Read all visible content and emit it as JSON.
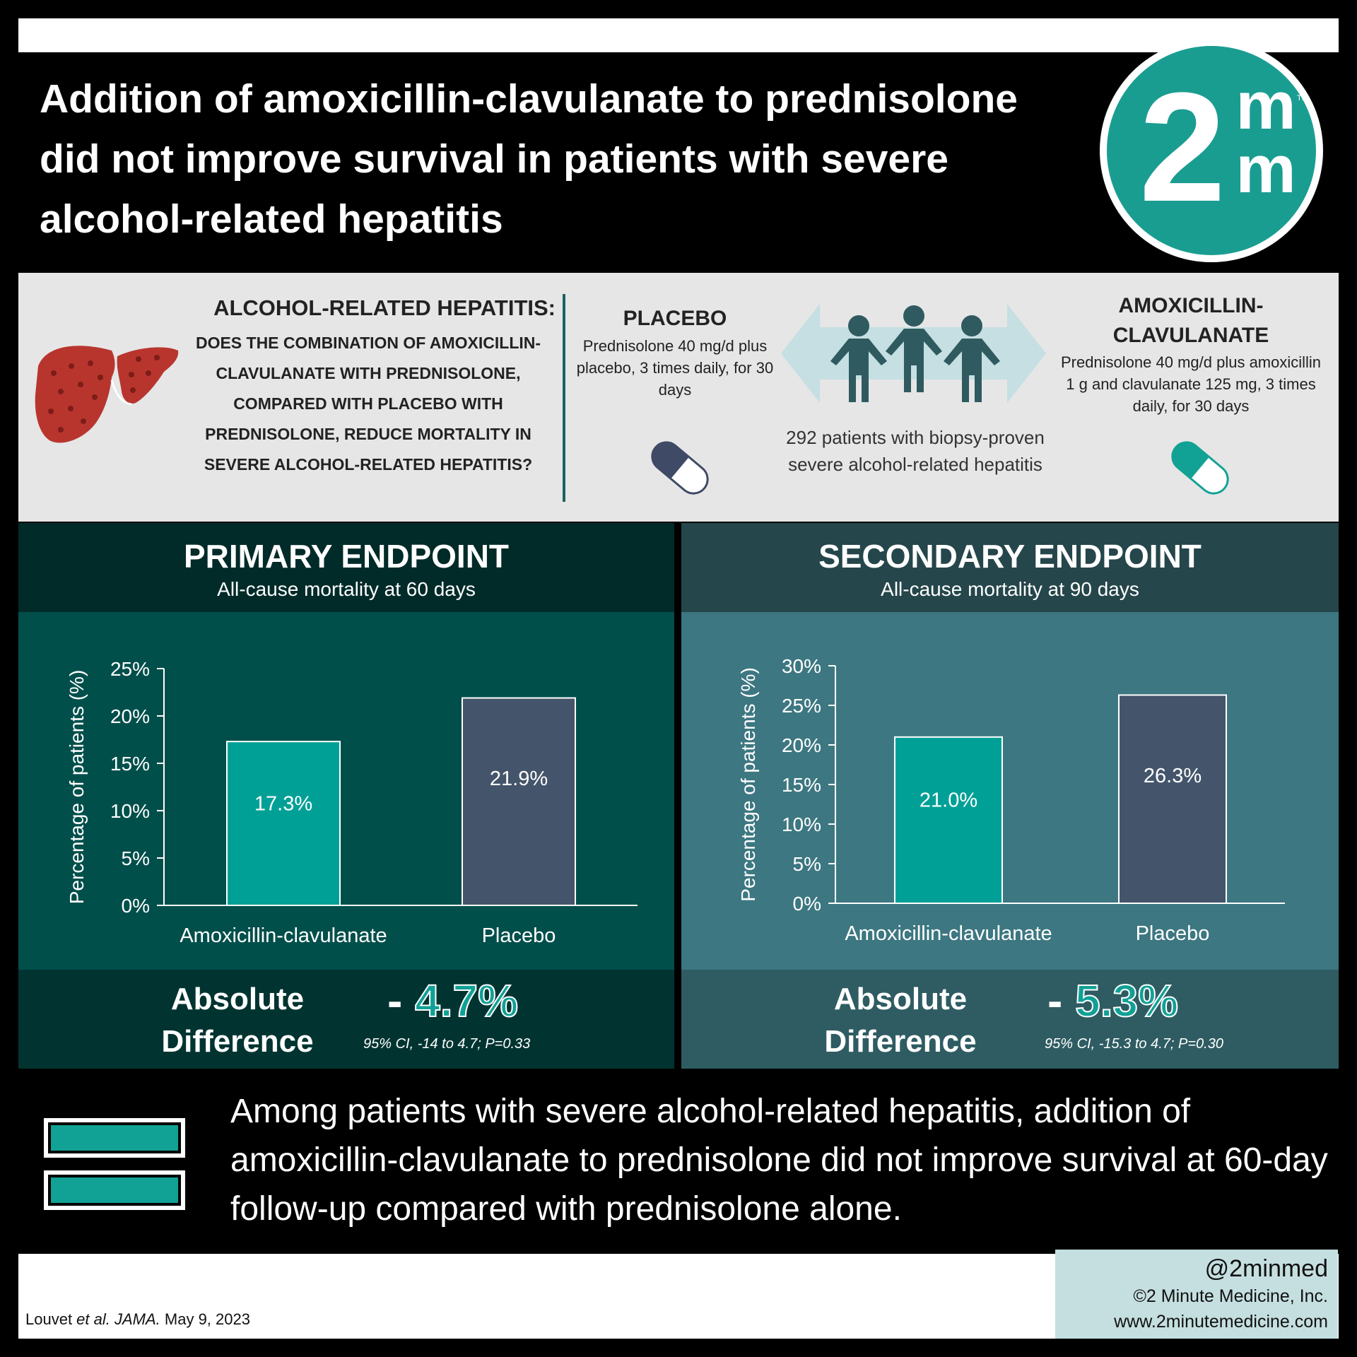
{
  "header": {
    "title": "Addition of amoxicillin-clavulanate to prednisolone did not improve survival in patients with severe alcohol-related hepatitis",
    "logo_main": "2",
    "logo_top": "m",
    "logo_bottom": "m",
    "logo_tm": "TM"
  },
  "study": {
    "question_heading": "ALCOHOL-RELATED HEPATITIS:",
    "question": "Does the combination of amoxicillin-clavulanate with prednisolone, compared with placebo with prednisolone, reduce mortality in severe alcohol-related hepatitis?",
    "placebo_title": "PLACEBO",
    "placebo_desc": "Prednisolone 40 mg/d plus placebo, 3 times daily, for 30 days",
    "amox_title": "AMOXICILLIN-CLAVULANATE",
    "amox_desc": "Prednisolone 40 mg/d plus amoxicillin 1 g and clavulanate 125 mg, 3 times daily, for 30 days",
    "population": "292 patients with biopsy-proven severe alcohol-related hepatitis"
  },
  "primary": {
    "title": "PRIMARY ENDPOINT",
    "subtitle": "All-cause mortality at 60 days",
    "diff_label": "Absolute Difference",
    "diff_sign": "-",
    "diff_value": "4.7%",
    "diff_ci": "95% CI, -14 to 4.7; P=0.33"
  },
  "secondary": {
    "title": "SECONDARY ENDPOINT",
    "subtitle": "All-cause mortality at 90 days",
    "diff_label": "Absolute Difference",
    "diff_sign": "-",
    "diff_value": "5.3%",
    "diff_ci": "95% CI, -15.3 to 4.7; P=0.30"
  },
  "chart_data": [
    {
      "type": "bar",
      "title": "All-cause mortality at 60 days",
      "categories": [
        "Amoxicillin-clavulanate",
        "Placebo"
      ],
      "values": [
        17.3,
        21.9
      ],
      "value_labels": [
        "17.3%",
        "21.9%"
      ],
      "ylabel": "Percentage of patients (%)",
      "ylim": [
        0,
        25
      ],
      "yticks": [
        0,
        5,
        10,
        15,
        20,
        25
      ],
      "ytick_labels": [
        "0%",
        "5%",
        "10%",
        "15%",
        "20%",
        "25%"
      ],
      "colors": [
        "#00a096",
        "#44556b"
      ]
    },
    {
      "type": "bar",
      "title": "All-cause mortality at 90 days",
      "categories": [
        "Amoxicillin-clavulanate",
        "Placebo"
      ],
      "values": [
        21.0,
        26.3
      ],
      "value_labels": [
        "21.0%",
        "26.3%"
      ],
      "ylabel": "Percentage of patients (%)",
      "ylim": [
        0,
        30
      ],
      "yticks": [
        0,
        5,
        10,
        15,
        20,
        25,
        30
      ],
      "ytick_labels": [
        "0%",
        "5%",
        "10%",
        "15%",
        "20%",
        "25%",
        "30%"
      ],
      "colors": [
        "#00a096",
        "#44556b"
      ]
    }
  ],
  "conclusion": {
    "text": "Among patients with severe alcohol-related hepatitis, addition of amoxicillin-clavulanate to prednisolone did not improve survival at 60-day follow-up compared with prednisolone alone."
  },
  "footer": {
    "citation_author": "Louvet ",
    "citation_etal": "et al.",
    "citation_journal": " JAMA.",
    "citation_date": " May 9, 2023",
    "handle": "@2minmed",
    "company": "©2 Minute Medicine, Inc.",
    "website": "www.2minutemedicine.com"
  },
  "colors": {
    "teal": "#00a096",
    "slate": "#44556b",
    "primary_dark": "#002b29",
    "secondary_dark": "#25464a"
  }
}
